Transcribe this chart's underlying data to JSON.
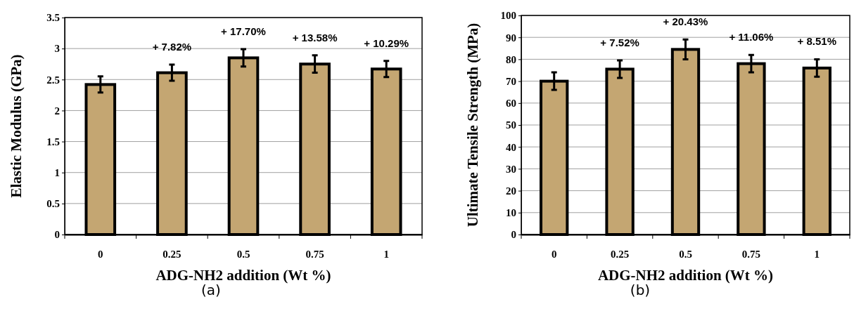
{
  "chart_data": [
    {
      "type": "bar",
      "xlabel": "ADG-NH2  addition (Wt %)",
      "ylabel": "Elastic Modulus (GPa)",
      "categories": [
        "0",
        "0.25",
        "0.5",
        "0.75",
        "1"
      ],
      "values": [
        2.42,
        2.61,
        2.85,
        2.75,
        2.67
      ],
      "errors": [
        0.13,
        0.13,
        0.14,
        0.14,
        0.13
      ],
      "color": "#c4a672",
      "ylim": [
        0,
        3.5
      ],
      "yticks": [
        0,
        0.5,
        1,
        1.5,
        2,
        2.5,
        3,
        3.5
      ],
      "grid": "y",
      "annotations": [
        {
          "text": "+ 7.82%",
          "x": "0.25",
          "y": 2.61
        },
        {
          "text": "+ 17.70%",
          "x": "0.5",
          "y": 2.85
        },
        {
          "text": "+ 13.58%",
          "x": "0.75",
          "y": 2.75
        },
        {
          "text": "+ 10.29%",
          "x": "1",
          "y": 2.67
        },
        "(a)"
      ]
    },
    {
      "type": "bar",
      "xlabel": "ADG-NH2  addition (Wt %)",
      "ylabel": "Ultimate Tensile Strength (MPa)",
      "categories": [
        "0",
        "0.25",
        "0.5",
        "0.75",
        "1"
      ],
      "values": [
        70,
        75.5,
        84.5,
        78,
        76
      ],
      "errors": [
        4,
        4,
        4.5,
        4,
        4
      ],
      "color": "#c4a672",
      "ylim": [
        0,
        100
      ],
      "yticks": [
        0,
        10,
        20,
        30,
        40,
        50,
        60,
        70,
        80,
        90,
        100
      ],
      "grid": "y",
      "annotations": [
        {
          "text": "+ 7.52%",
          "x": "0.25",
          "y": 75.5
        },
        {
          "text": "+ 20.43%",
          "x": "0.5",
          "y": 84.5
        },
        {
          "text": "+ 11.06%",
          "x": "0.75",
          "y": 78
        },
        {
          "text": "+ 8.51%",
          "x": "1",
          "y": 76
        },
        "(b)"
      ]
    }
  ]
}
